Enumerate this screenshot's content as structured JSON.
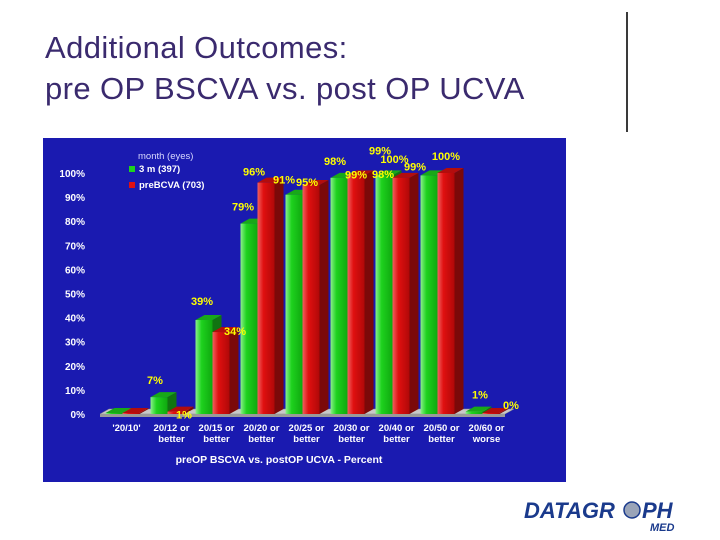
{
  "slide": {
    "title_line1": "Additional Outcomes:",
    "title_line2": "pre OP BSCVA vs. post OP UCVA"
  },
  "colors": {
    "background": "#1a1ab0",
    "series_green": "#1ed21e",
    "series_red": "#e01010",
    "label_text": "#ffffff",
    "value_text": "#ffff00",
    "title_text": "#3a2a6e"
  },
  "chart_data": {
    "type": "bar",
    "title": "",
    "xlabel": "preOP BSCVA vs. postOP UCVA - Percent",
    "ylabel": "",
    "ylim": [
      0,
      100
    ],
    "yticks": [
      "0%",
      "10%",
      "20%",
      "30%",
      "40%",
      "50%",
      "60%",
      "70%",
      "80%",
      "90%",
      "100%"
    ],
    "categories": [
      [
        "'20/10'"
      ],
      [
        "20/12 or",
        "better"
      ],
      [
        "20/15 or",
        "better"
      ],
      [
        "20/20 or",
        "better"
      ],
      [
        "20/25 or",
        "better"
      ],
      [
        "20/30 or",
        "better"
      ],
      [
        "20/40 or",
        "better"
      ],
      [
        "20/50 or",
        "better"
      ],
      [
        "20/60 or",
        "worse"
      ]
    ],
    "legend_title": "month (eyes)",
    "legend_position": "top-left",
    "series": [
      {
        "name": "3 m (397)",
        "color": "#1ed21e",
        "values": [
          0,
          7,
          39,
          79,
          91,
          98,
          99,
          99,
          1
        ],
        "labels": [
          "",
          "7%",
          "39%",
          "79%",
          "91%",
          "98%",
          "99%",
          "99%",
          "1%"
        ]
      },
      {
        "name": "preBCVA (703)",
        "color": "#e01010",
        "values": [
          0,
          1,
          34,
          96,
          95,
          99,
          98,
          100,
          0
        ],
        "labels": [
          "",
          "1%",
          "34%",
          "96%",
          "95%",
          "99%",
          "98%",
          "100%",
          "0%"
        ]
      }
    ],
    "extra_labels": [
      {
        "text": "100%",
        "category_index": 6
      }
    ]
  },
  "logo": {
    "text_main": "DATAGR",
    "text_tail": "PH",
    "text_sub": "MED"
  }
}
